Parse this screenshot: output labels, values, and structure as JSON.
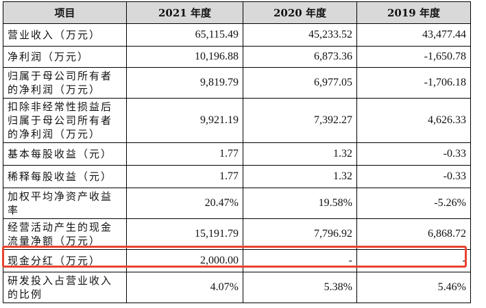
{
  "table": {
    "headers": [
      "项目",
      "2021 年度",
      "2020 年度",
      "2019 年度"
    ],
    "rows": [
      {
        "label": "营业收入（万元）",
        "values": [
          "65,115.49",
          "45,233.52",
          "43,477.44"
        ]
      },
      {
        "label": "净利润（万元）",
        "values": [
          "10,196.88",
          "6,873.36",
          "-1,650.78"
        ]
      },
      {
        "label": "归属于母公司所有者的净利润（万元）",
        "values": [
          "9,819.79",
          "6,977.05",
          "-1,706.18"
        ]
      },
      {
        "label": "扣除非经常性损益后归属于母公司所有者的净利润（万元）",
        "values": [
          "9,921.19",
          "7,392.27",
          "4,626.33"
        ]
      },
      {
        "label": "基本每股收益（元）",
        "values": [
          "1.77",
          "1.32",
          "-0.33"
        ]
      },
      {
        "label": "稀释每股收益（元）",
        "values": [
          "1.77",
          "1.32",
          "-0.33"
        ]
      },
      {
        "label": "加权平均净资产收益率",
        "values": [
          "20.47%",
          "19.58%",
          "-5.26%"
        ]
      },
      {
        "label": "经营活动产生的现金流量净额（万元）",
        "values": [
          "15,191.79",
          "7,796.92",
          "6,868.72"
        ]
      },
      {
        "label": "现金分红（万元）",
        "values": [
          "2,000.00",
          "-",
          "-"
        ]
      },
      {
        "label": "研发投入占营业收入的比例",
        "values": [
          "4.07%",
          "5.38%",
          "5.46%"
        ]
      }
    ]
  },
  "highlight_color": "#e8422f"
}
